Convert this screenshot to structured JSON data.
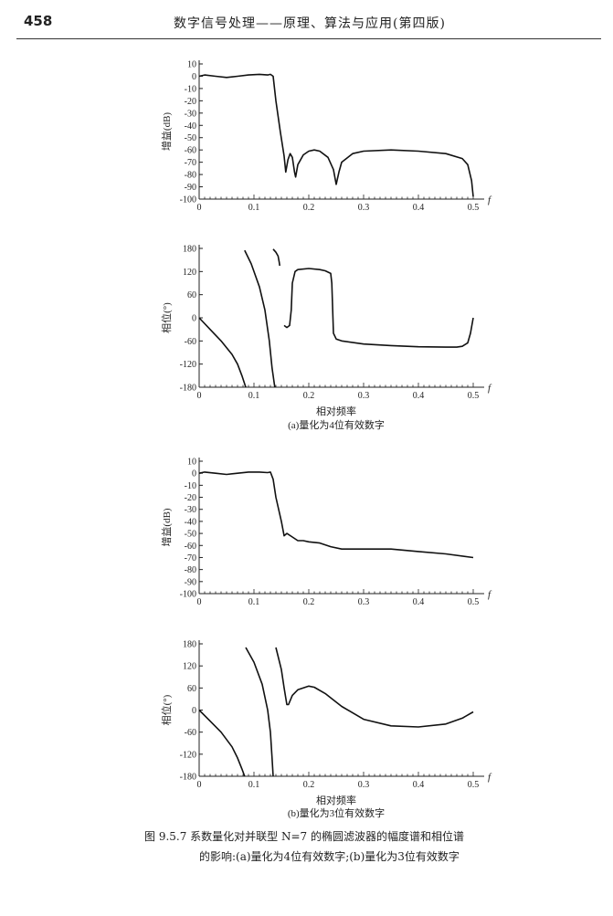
{
  "header": {
    "page_number": "458",
    "running_head": "数字信号处理——原理、算法与应用(第四版)"
  },
  "figure": {
    "caption_line1": "图 9.5.7   系数量化对并联型 N=7 的椭圆滤波器的幅度谱和相位谱",
    "caption_line2": "的影响:(a)量化为4位有效数字;(b)量化为3位有效数字"
  },
  "chart_data": [
    {
      "type": "line",
      "panel": "a-magnitude",
      "ylabel": "增益(dB)",
      "xlabel": "f",
      "xlim": [
        0,
        0.5
      ],
      "ylim": [
        -100,
        10
      ],
      "xticks": [
        "0",
        "0.1",
        "0.2",
        "0.3",
        "0.4",
        "0.5"
      ],
      "yticks": [
        "10",
        "0",
        "-10",
        "-20",
        "-30",
        "-40",
        "-50",
        "-60",
        "-70",
        "-80",
        "-90",
        "-100"
      ],
      "segments": [
        [
          [
            0,
            0
          ],
          [
            0.01,
            1
          ],
          [
            0.03,
            0
          ],
          [
            0.05,
            -1
          ],
          [
            0.07,
            0
          ],
          [
            0.09,
            1
          ],
          [
            0.11,
            1.5
          ],
          [
            0.125,
            1
          ],
          [
            0.13,
            1.5
          ],
          [
            0.135,
            0
          ],
          [
            0.14,
            -20
          ],
          [
            0.148,
            -45
          ],
          [
            0.155,
            -65
          ],
          [
            0.158,
            -78
          ],
          [
            0.162,
            -68
          ],
          [
            0.166,
            -63
          ],
          [
            0.17,
            -66
          ],
          [
            0.174,
            -78
          ],
          [
            0.176,
            -82
          ],
          [
            0.18,
            -72
          ],
          [
            0.19,
            -64
          ],
          [
            0.2,
            -61
          ],
          [
            0.21,
            -60
          ],
          [
            0.22,
            -61
          ],
          [
            0.235,
            -66
          ],
          [
            0.245,
            -76
          ],
          [
            0.25,
            -88
          ],
          [
            0.255,
            -78
          ],
          [
            0.26,
            -70
          ],
          [
            0.28,
            -63
          ],
          [
            0.3,
            -61
          ],
          [
            0.35,
            -60
          ],
          [
            0.4,
            -61
          ],
          [
            0.45,
            -63
          ],
          [
            0.48,
            -67
          ],
          [
            0.49,
            -72
          ],
          [
            0.497,
            -85
          ],
          [
            0.5,
            -98
          ]
        ]
      ]
    },
    {
      "type": "line",
      "panel": "a-phase",
      "ylabel": "相位(°)",
      "xlabel": "f",
      "xlim": [
        0,
        0.5
      ],
      "ylim": [
        -180,
        180
      ],
      "xticks": [
        "0",
        "0.1",
        "0.2",
        "0.3",
        "0.4",
        "0.5"
      ],
      "yticks": [
        "180",
        "120",
        "60",
        "0",
        "-60",
        "-120",
        "-180"
      ],
      "segments": [
        [
          [
            0,
            0
          ],
          [
            0.02,
            -30
          ],
          [
            0.04,
            -60
          ],
          [
            0.06,
            -95
          ],
          [
            0.07,
            -120
          ],
          [
            0.078,
            -150
          ],
          [
            0.085,
            -180
          ]
        ],
        [
          [
            0.083,
            175
          ],
          [
            0.095,
            140
          ],
          [
            0.11,
            80
          ],
          [
            0.12,
            20
          ],
          [
            0.128,
            -60
          ],
          [
            0.133,
            -130
          ],
          [
            0.138,
            -180
          ]
        ],
        [
          [
            0.135,
            178
          ],
          [
            0.14,
            170
          ],
          [
            0.144,
            160
          ],
          [
            0.146,
            145
          ],
          [
            0.147,
            135
          ]
        ],
        [
          [
            0.155,
            -20
          ],
          [
            0.16,
            -25
          ],
          [
            0.165,
            -20
          ],
          [
            0.168,
            20
          ],
          [
            0.17,
            90
          ],
          [
            0.175,
            120
          ],
          [
            0.18,
            125
          ],
          [
            0.2,
            128
          ],
          [
            0.22,
            125
          ],
          [
            0.23,
            122
          ],
          [
            0.24,
            115
          ],
          [
            0.242,
            90
          ],
          [
            0.245,
            -40
          ],
          [
            0.25,
            -55
          ],
          [
            0.26,
            -60
          ],
          [
            0.3,
            -68
          ],
          [
            0.35,
            -72
          ],
          [
            0.4,
            -75
          ],
          [
            0.45,
            -76
          ],
          [
            0.47,
            -76
          ],
          [
            0.48,
            -74
          ],
          [
            0.49,
            -65
          ],
          [
            0.495,
            -40
          ],
          [
            0.5,
            0
          ]
        ]
      ]
    },
    {
      "type": "line",
      "panel": "b-magnitude",
      "ylabel": "增益(dB)",
      "xlabel": "f",
      "xlim": [
        0,
        0.5
      ],
      "ylim": [
        -100,
        10
      ],
      "xticks": [
        "0",
        "0.1",
        "0.2",
        "0.3",
        "0.4",
        "0.5"
      ],
      "yticks": [
        "10",
        "0",
        "-10",
        "-20",
        "-30",
        "-40",
        "-50",
        "-60",
        "-70",
        "-80",
        "-90",
        "-100"
      ],
      "segments": [
        [
          [
            0,
            0
          ],
          [
            0.01,
            1
          ],
          [
            0.03,
            0
          ],
          [
            0.05,
            -1
          ],
          [
            0.07,
            0
          ],
          [
            0.09,
            1
          ],
          [
            0.11,
            1
          ],
          [
            0.125,
            0.5
          ],
          [
            0.13,
            1
          ],
          [
            0.135,
            -5
          ],
          [
            0.14,
            -20
          ],
          [
            0.15,
            -40
          ],
          [
            0.155,
            -52
          ],
          [
            0.16,
            -50
          ],
          [
            0.17,
            -53
          ],
          [
            0.18,
            -56
          ],
          [
            0.19,
            -56
          ],
          [
            0.2,
            -57
          ],
          [
            0.22,
            -58
          ],
          [
            0.24,
            -61
          ],
          [
            0.26,
            -63
          ],
          [
            0.3,
            -63
          ],
          [
            0.35,
            -63
          ],
          [
            0.4,
            -65
          ],
          [
            0.45,
            -67
          ],
          [
            0.5,
            -70
          ]
        ]
      ]
    },
    {
      "type": "line",
      "panel": "b-phase",
      "ylabel": "相位(°)",
      "xlabel": "f",
      "xlim": [
        0,
        0.5
      ],
      "ylim": [
        -180,
        180
      ],
      "xticks": [
        "0",
        "0.1",
        "0.2",
        "0.3",
        "0.4",
        "0.5"
      ],
      "yticks": [
        "180",
        "120",
        "60",
        "0",
        "-60",
        "-120",
        "-180"
      ],
      "segments": [
        [
          [
            0,
            0
          ],
          [
            0.02,
            -30
          ],
          [
            0.04,
            -60
          ],
          [
            0.06,
            -100
          ],
          [
            0.07,
            -130
          ],
          [
            0.078,
            -160
          ],
          [
            0.083,
            -180
          ]
        ],
        [
          [
            0.085,
            170
          ],
          [
            0.1,
            130
          ],
          [
            0.115,
            70
          ],
          [
            0.125,
            0
          ],
          [
            0.13,
            -60
          ],
          [
            0.133,
            -130
          ],
          [
            0.135,
            -180
          ]
        ],
        [
          [
            0.14,
            170
          ],
          [
            0.15,
            110
          ],
          [
            0.155,
            60
          ],
          [
            0.16,
            15
          ],
          [
            0.163,
            15
          ],
          [
            0.17,
            40
          ],
          [
            0.18,
            55
          ],
          [
            0.2,
            65
          ],
          [
            0.21,
            62
          ],
          [
            0.23,
            45
          ],
          [
            0.26,
            10
          ],
          [
            0.3,
            -25
          ],
          [
            0.35,
            -43
          ],
          [
            0.4,
            -46
          ],
          [
            0.45,
            -38
          ],
          [
            0.48,
            -22
          ],
          [
            0.5,
            -5
          ]
        ]
      ]
    }
  ],
  "panel_labels": {
    "a_xlabel": "相对频率",
    "a_caption": "(a)量化为4位有效数字",
    "b_xlabel": "相对频率",
    "b_caption": "(b)量化为3位有效数字"
  }
}
